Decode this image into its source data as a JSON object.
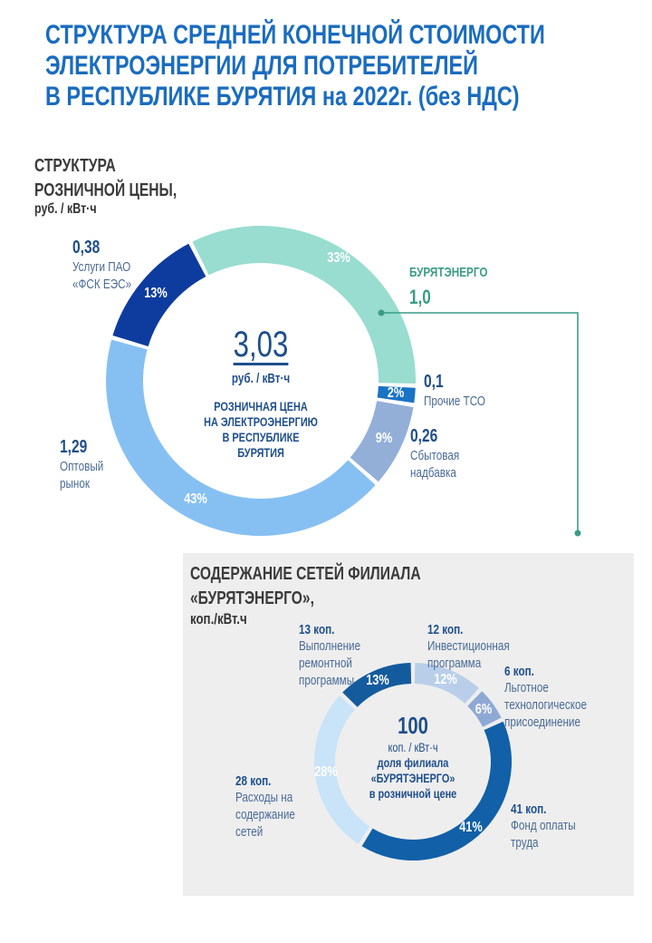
{
  "title": [
    "СТРУКТУРА СРЕДНЕЙ КОНЕЧНОЙ СТОИМОСТИ",
    "ЭЛЕКТРОЭНЕРГИИ ДЛЯ ПОТРЕБИТЕЛЕЙ",
    "В РЕСПУБЛИКЕ БУРЯТИЯ на 2022г. (без НДС)"
  ],
  "chart_data": [
    {
      "type": "pie",
      "title": [
        "СТРУКТУРА",
        "РОЗНИЧНОЙ ЦЕНЫ,"
      ],
      "unit": "руб. / кВт·ч",
      "center": {
        "value": "3,03",
        "unit": "руб. / кВт·ч",
        "caption": [
          "РОЗНИЧНАЯ ЦЕНА",
          "НА ЭЛЕКТРОЭНЕРГИЮ",
          "В РЕСПУБЛИКЕ",
          "БУРЯТИЯ"
        ]
      },
      "slices": [
        {
          "name": "БУРЯТЭНЕРГО",
          "value": "1,0",
          "percent": 33,
          "pct_label": "33%",
          "color": "#98ddd0"
        },
        {
          "name": "Прочие ТСО",
          "value": "0,1",
          "percent": 2,
          "pct_label": "2%",
          "color": "#1a72c4"
        },
        {
          "name": "Сбытовая надбавка",
          "value": "0,26",
          "percent": 9,
          "pct_label": "9%",
          "color": "#93afd8"
        },
        {
          "name": "Оптовый рынок",
          "value": "1,29",
          "percent": 43,
          "pct_label": "43%",
          "color": "#86c0f2"
        },
        {
          "name": "Услуги ПАО «ФСК ЕЭС»",
          "value": "0,38",
          "percent": 13,
          "pct_label": "13%",
          "color": "#0e3c9e"
        }
      ],
      "label_lines": {
        "s0": [
          "БУРЯТЭНЕРГО"
        ],
        "s1": [
          "Прочие ТСО"
        ],
        "s2": [
          "Сбытовая",
          "надбавка"
        ],
        "s3": [
          "Оптовый",
          "рынок"
        ],
        "s4": [
          "Услуги ПАО",
          "«ФСК ЕЭС»"
        ]
      },
      "accent_color": "#3a9c86"
    },
    {
      "type": "pie",
      "title": [
        "СОДЕРЖАНИЕ  СЕТЕЙ ФИЛИАЛА",
        "«БУРЯТЭНЕРГО»,"
      ],
      "unit": "коп./кВт.ч",
      "center": {
        "value": "100",
        "unit": "коп. /  кВт·ч",
        "caption": [
          "доля филиала",
          "«БУРЯТЭНЕРГО»",
          "в розничной цене"
        ]
      },
      "slices": [
        {
          "name": "Инвестиционная программа",
          "value": "12 коп.",
          "percent": 12,
          "pct_label": "12%",
          "color": "#b9cfe9"
        },
        {
          "name": "Льготное технологическое присоединение",
          "value": "6 коп.",
          "percent": 6,
          "pct_label": "6%",
          "color": "#8fa9d5"
        },
        {
          "name": "Фонд оплаты труда",
          "value": "41 коп.",
          "percent": 41,
          "pct_label": "41%",
          "color": "#1160a8"
        },
        {
          "name": "Расходы на содержание сетей",
          "value": "28  коп.",
          "percent": 28,
          "pct_label": "28%",
          "color": "#c9e3f8"
        },
        {
          "name": "Выполнение ремонтной программы",
          "value": "13 коп.",
          "percent": 13,
          "pct_label": "13%",
          "color": "#145b9e"
        }
      ],
      "label_lines": {
        "s0": [
          "Инвестиционная",
          "программа"
        ],
        "s1": [
          "Льготное",
          "технологическое",
          "присоединение"
        ],
        "s2": [
          "Фонд оплаты",
          "труда"
        ],
        "s3": [
          "Расходы на",
          "содержание",
          "сетей"
        ],
        "s4": [
          "Выполнение",
          "ремонтной",
          "программы"
        ]
      }
    }
  ]
}
